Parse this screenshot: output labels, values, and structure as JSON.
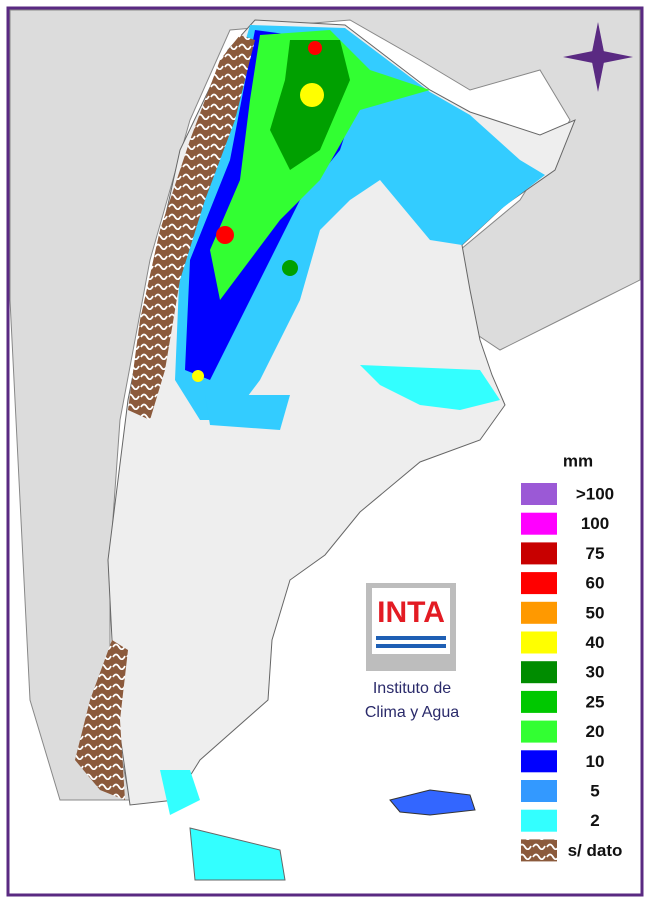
{
  "legend": {
    "title": "mm",
    "items": [
      {
        "label": ">100",
        "color": "#9b59d6"
      },
      {
        "label": "100",
        "color": "#ff00ff"
      },
      {
        "label": "75",
        "color": "#c80000"
      },
      {
        "label": "60",
        "color": "#ff0000"
      },
      {
        "label": "50",
        "color": "#ff9900"
      },
      {
        "label": "40",
        "color": "#ffff00"
      },
      {
        "label": "30",
        "color": "#008c00"
      },
      {
        "label": "25",
        "color": "#00c800"
      },
      {
        "label": "20",
        "color": "#32ff32"
      },
      {
        "label": "10",
        "color": "#0000ff"
      },
      {
        "label": "5",
        "color": "#3399ff"
      },
      {
        "label": "2",
        "color": "#33ffff"
      }
    ],
    "no_data": "s/ dato"
  },
  "logo": {
    "text": "INTA",
    "line1": "Instituto de",
    "line2": "Clima y Agua"
  }
}
